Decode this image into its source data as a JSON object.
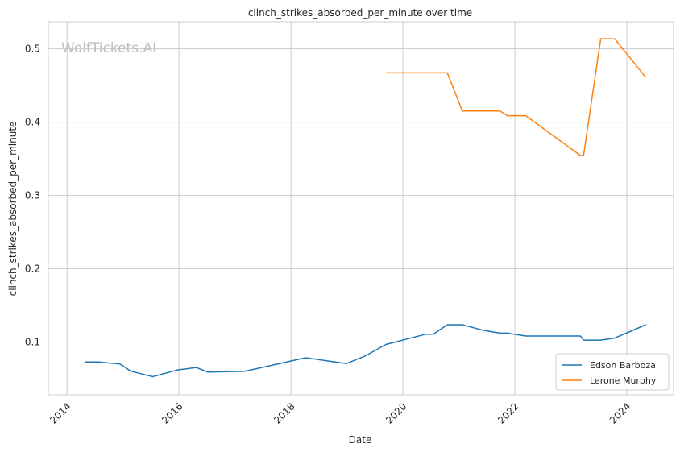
{
  "chart_data": {
    "type": "line",
    "title": "clinch_strikes_absorbed_per_minute over time",
    "xlabel": "Date",
    "ylabel": "clinch_strikes_absorbed_per_minute",
    "watermark": "WolfTickets.AI",
    "xlim": [
      "2013-09-01",
      "2024-11-01"
    ],
    "ylim": [
      0.028,
      0.537
    ],
    "x_ticks": [
      "2014",
      "2016",
      "2018",
      "2020",
      "2022",
      "2024"
    ],
    "y_ticks": [
      "0.1",
      "0.2",
      "0.3",
      "0.4",
      "0.5"
    ],
    "grid": true,
    "legend_position": "lower-right",
    "colors": {
      "grid": "#cccccc",
      "axes_edge": "#cccccc"
    },
    "series": [
      {
        "name": "Edson Barboza",
        "color": "#1f77b4",
        "points": [
          [
            "2014-04-26",
            0.0727
          ],
          [
            "2014-07-26",
            0.0727
          ],
          [
            "2014-12-13",
            0.0701
          ],
          [
            "2015-02-22",
            0.0602
          ],
          [
            "2015-07-15",
            0.0527
          ],
          [
            "2015-12-19",
            0.0618
          ],
          [
            "2016-04-23",
            0.0653
          ],
          [
            "2016-07-08",
            0.059
          ],
          [
            "2017-03-04",
            0.06
          ],
          [
            "2018-04-07",
            0.0786
          ],
          [
            "2018-12-29",
            0.0706
          ],
          [
            "2019-04-27",
            0.0807
          ],
          [
            "2019-09-14",
            0.0968
          ],
          [
            "2020-05-30",
            0.1108
          ],
          [
            "2020-07-18",
            0.1108
          ],
          [
            "2020-10-17",
            0.1236
          ],
          [
            "2021-01-23",
            0.1236
          ],
          [
            "2021-06-05",
            0.1163
          ],
          [
            "2021-09-25",
            0.1122
          ],
          [
            "2021-11-13",
            0.1122
          ],
          [
            "2022-03-12",
            0.1082
          ],
          [
            "2023-03-04",
            0.1082
          ],
          [
            "2023-03-25",
            0.1027
          ],
          [
            "2023-07-15",
            0.1027
          ],
          [
            "2023-10-14",
            0.1054
          ],
          [
            "2024-05-04",
            0.1236
          ]
        ]
      },
      {
        "name": "Lerone Murphy",
        "color": "#ff7f0e",
        "points": [
          [
            "2019-09-14",
            0.4673
          ],
          [
            "2020-10-17",
            0.4673
          ],
          [
            "2021-01-23",
            0.4152
          ],
          [
            "2021-09-25",
            0.4152
          ],
          [
            "2021-11-13",
            0.4088
          ],
          [
            "2022-03-12",
            0.4088
          ],
          [
            "2023-03-04",
            0.3546
          ],
          [
            "2023-03-25",
            0.3546
          ],
          [
            "2023-07-15",
            0.5138
          ],
          [
            "2023-10-14",
            0.5138
          ],
          [
            "2024-05-04",
            0.4609
          ]
        ]
      }
    ]
  }
}
